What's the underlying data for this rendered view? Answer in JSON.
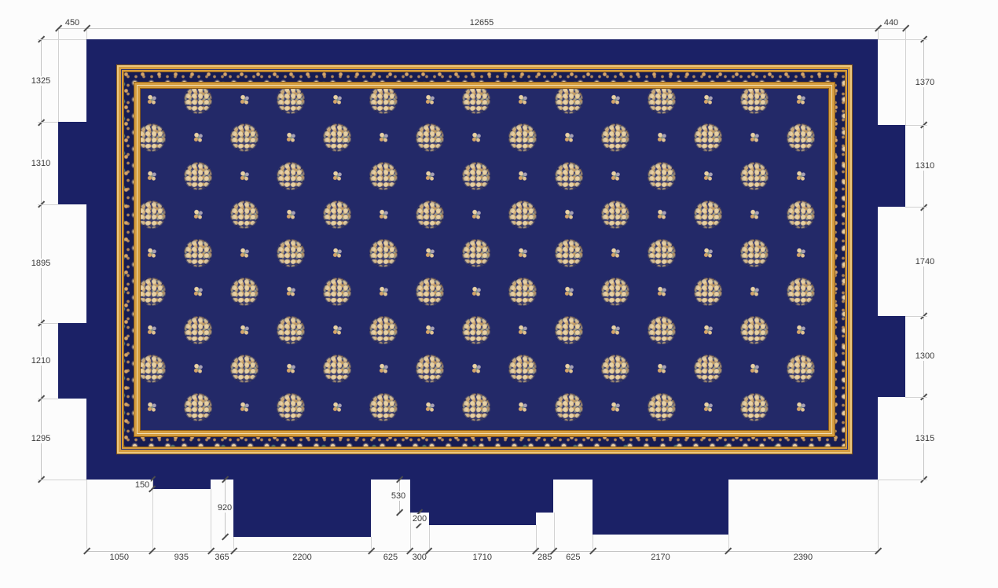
{
  "drawing": {
    "type": "dimensioned carpet installation plan",
    "dimensions": {
      "top": [
        "450",
        "12655",
        "440"
      ],
      "left": [
        "1325",
        "1310",
        "1895",
        "1210",
        "1295"
      ],
      "right": [
        "1370",
        "1310",
        "1740",
        "1300",
        "1315"
      ],
      "bottom": [
        "1050",
        "935",
        "365",
        "2200",
        "625",
        "300",
        "1710",
        "285",
        "625",
        "2170",
        "2390"
      ],
      "detail": [
        "150",
        "920",
        "530",
        "200"
      ]
    },
    "annotation_color": "#3a3a3a",
    "line_color": "#c4c4c4"
  },
  "carpet": {
    "colors": {
      "body_navy": "#1b2166",
      "field_navy": "#232968",
      "border_navy": "#171c52",
      "gold": "#d59d40",
      "gold_dark": "#8a5a16",
      "cream": "#e9d0a6",
      "tan": "#d4a569",
      "teal": "#58887c"
    },
    "borders": [
      "gold-stripe-band",
      "floral-scroll-border",
      "gold-stripe-band"
    ],
    "field_grid": {
      "rows": 9,
      "cols": 15,
      "pattern": "checkerboard",
      "large_motif": "round-floral-medallion",
      "small_motif": "floral-sprig"
    }
  }
}
